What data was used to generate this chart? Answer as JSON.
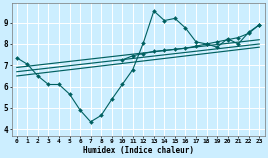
{
  "xlabel": "Humidex (Indice chaleur)",
  "bg_color": "#cceeff",
  "line_color": "#006060",
  "grid_color": "#ffffff",
  "xlim": [
    -0.5,
    23.5
  ],
  "ylim": [
    3.7,
    9.9
  ],
  "xticks": [
    0,
    1,
    2,
    3,
    4,
    5,
    6,
    7,
    8,
    9,
    10,
    11,
    12,
    13,
    14,
    15,
    16,
    17,
    18,
    19,
    20,
    21,
    22,
    23
  ],
  "yticks": [
    4,
    5,
    6,
    7,
    8,
    9
  ],
  "line1_x": [
    0,
    1,
    2,
    3,
    4,
    5,
    6,
    7,
    8,
    9,
    10,
    11,
    12,
    13,
    14,
    15,
    16,
    17,
    18,
    19,
    20,
    21,
    22,
    23
  ],
  "line1_y": [
    7.35,
    7.05,
    6.5,
    6.1,
    6.1,
    5.65,
    4.9,
    4.35,
    4.65,
    5.4,
    6.1,
    6.8,
    8.05,
    9.55,
    9.1,
    9.2,
    8.75,
    8.1,
    8.0,
    7.85,
    8.25,
    8.0,
    8.55,
    8.9
  ],
  "trend1_x": [
    0,
    23
  ],
  "trend1_y": [
    6.5,
    7.85
  ],
  "trend2_x": [
    0,
    23
  ],
  "trend2_y": [
    6.7,
    8.0
  ],
  "trend3_x": [
    0,
    23
  ],
  "trend3_y": [
    6.9,
    8.2
  ],
  "line2_x": [
    10,
    11,
    12,
    13,
    14,
    15,
    16,
    17,
    18,
    19,
    20,
    21,
    22,
    23
  ],
  "line2_y": [
    7.25,
    7.45,
    7.55,
    7.65,
    7.7,
    7.75,
    7.8,
    7.9,
    8.0,
    8.1,
    8.2,
    8.3,
    8.5,
    8.9
  ]
}
